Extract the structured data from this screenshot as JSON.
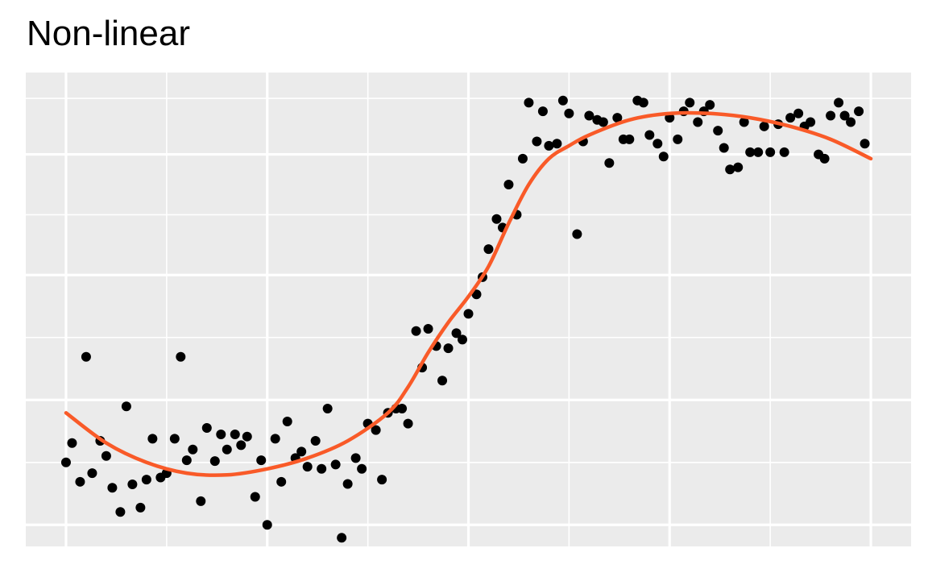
{
  "chart_data": {
    "type": "scatter",
    "title": "Non-linear",
    "xlabel": "",
    "ylabel": "",
    "xlim": [
      -0.2,
      4.2
    ],
    "ylim": [
      -0.05,
      1.05
    ],
    "x_major_breaks": [
      0,
      1,
      2,
      3,
      4
    ],
    "x_minor_breaks": [
      0.5,
      1.5,
      2.5,
      3.5
    ],
    "y_major_breaks": [
      0,
      0.29,
      0.58,
      0.86
    ],
    "y_minor_breaks": [
      0.145,
      0.435,
      0.72,
      0.99
    ],
    "grid": true,
    "tick_labels": false,
    "panel_background": "#EBEBEB",
    "grid_color": "#FFFFFF",
    "point_color": "#000000",
    "curve_color": "#F95A28",
    "points": {
      "x": [
        0.0,
        0.03,
        0.07,
        0.1,
        0.13,
        0.17,
        0.2,
        0.23,
        0.27,
        0.3,
        0.33,
        0.37,
        0.4,
        0.43,
        0.47,
        0.5,
        0.54,
        0.57,
        0.6,
        0.63,
        0.67,
        0.7,
        0.74,
        0.77,
        0.8,
        0.84,
        0.87,
        0.9,
        0.94,
        0.97,
        1.0,
        1.04,
        1.07,
        1.1,
        1.14,
        1.17,
        1.2,
        1.24,
        1.27,
        1.3,
        1.34,
        1.37,
        1.4,
        1.44,
        1.47,
        1.5,
        1.54,
        1.57,
        1.6,
        1.64,
        1.67,
        1.7,
        1.74,
        1.77,
        1.8,
        1.84,
        1.87,
        1.9,
        1.94,
        1.97,
        2.0,
        2.04,
        2.07,
        2.1,
        2.14,
        2.17,
        2.2,
        2.24,
        2.27,
        2.3,
        2.34,
        2.37,
        2.4,
        2.44,
        2.47,
        2.5,
        2.54,
        2.57,
        2.6,
        2.64,
        2.67,
        2.7,
        2.74,
        2.77,
        2.8,
        2.84,
        2.87,
        2.9,
        2.94,
        2.97,
        3.0,
        3.04,
        3.07,
        3.1,
        3.14,
        3.17,
        3.2,
        3.24,
        3.27,
        3.3,
        3.34,
        3.37,
        3.4,
        3.44,
        3.47,
        3.5,
        3.54,
        3.57,
        3.6,
        3.64,
        3.67,
        3.7,
        3.74,
        3.77,
        3.8,
        3.84,
        3.87,
        3.9,
        3.94,
        3.97
      ],
      "y": [
        0.145,
        0.19,
        0.1,
        0.39,
        0.12,
        0.195,
        0.16,
        0.086,
        0.03,
        0.275,
        0.094,
        0.04,
        0.105,
        0.2,
        0.11,
        0.12,
        0.2,
        0.39,
        0.15,
        0.175,
        0.055,
        0.225,
        0.148,
        0.21,
        0.175,
        0.21,
        0.185,
        0.205,
        0.065,
        0.15,
        0.0,
        0.2,
        0.1,
        0.24,
        0.155,
        0.17,
        0.135,
        0.195,
        0.13,
        0.27,
        0.14,
        -0.03,
        0.095,
        0.155,
        0.13,
        0.235,
        0.22,
        0.105,
        0.26,
        0.27,
        0.27,
        0.235,
        0.45,
        0.365,
        0.455,
        0.415,
        0.335,
        0.41,
        0.445,
        0.43,
        0.49,
        0.535,
        0.575,
        0.64,
        0.71,
        0.69,
        0.79,
        0.72,
        0.85,
        0.98,
        0.89,
        0.96,
        0.88,
        0.885,
        0.985,
        0.955,
        0.675,
        0.89,
        0.95,
        0.94,
        0.935,
        0.84,
        0.945,
        0.895,
        0.895,
        0.985,
        0.98,
        0.905,
        0.885,
        0.855,
        0.945,
        0.895,
        0.96,
        0.98,
        0.935,
        0.96,
        0.975,
        0.915,
        0.875,
        0.825,
        0.83,
        0.935,
        0.865,
        0.865,
        0.925,
        0.865,
        0.93,
        0.865,
        0.945,
        0.955,
        0.925,
        0.935,
        0.86,
        0.85,
        0.95,
        0.98,
        0.95,
        0.935,
        0.96,
        0.885
      ]
    },
    "smooth_curve": {
      "x": [
        0.0,
        0.2,
        0.4,
        0.6,
        0.8,
        1.0,
        1.2,
        1.4,
        1.6,
        1.7,
        1.8,
        1.9,
        2.0,
        2.1,
        2.2,
        2.3,
        2.4,
        2.5,
        2.6,
        2.8,
        3.0,
        3.2,
        3.4,
        3.6,
        3.8,
        4.0
      ],
      "y": [
        0.26,
        0.19,
        0.145,
        0.12,
        0.116,
        0.13,
        0.155,
        0.195,
        0.26,
        0.32,
        0.4,
        0.47,
        0.53,
        0.6,
        0.7,
        0.79,
        0.85,
        0.88,
        0.905,
        0.94,
        0.955,
        0.955,
        0.945,
        0.925,
        0.895,
        0.85
      ]
    }
  }
}
